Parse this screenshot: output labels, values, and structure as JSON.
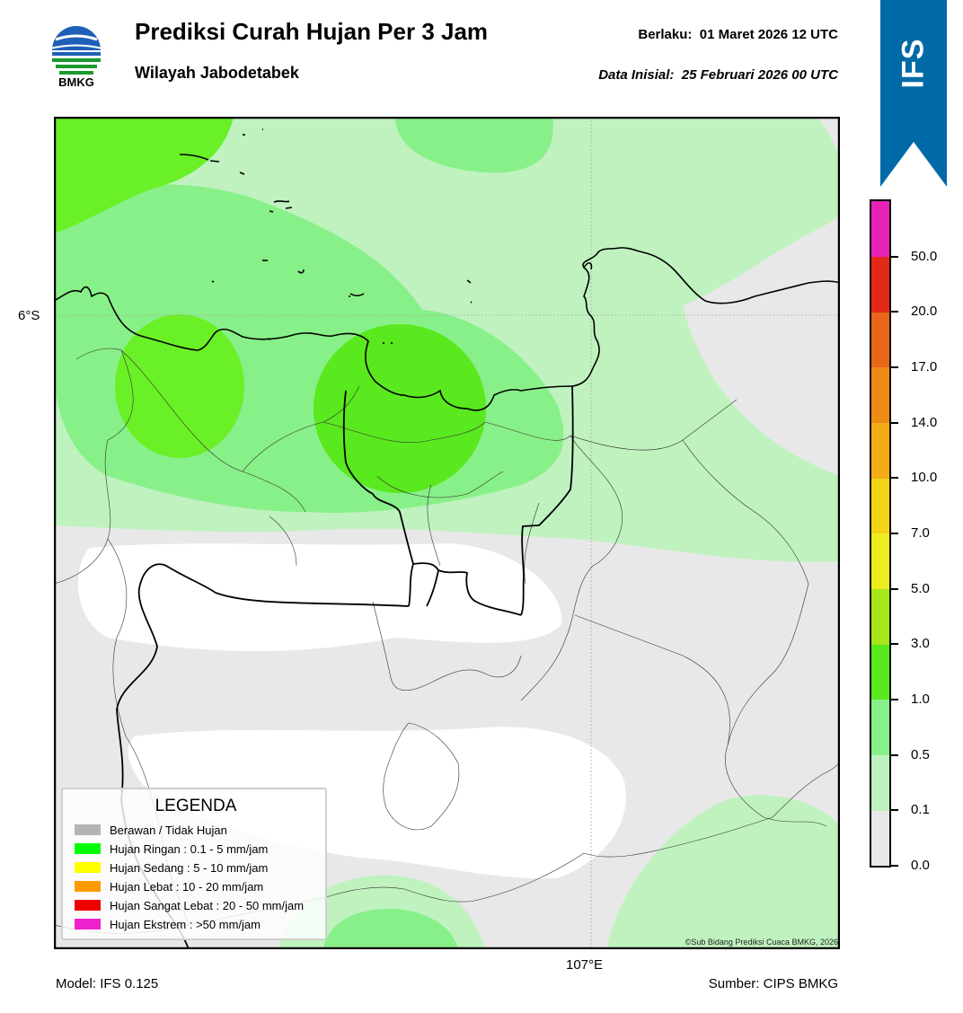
{
  "header": {
    "title": "Prediksi Curah Hujan Per 3 Jam",
    "subtitle": "Wilayah Jabodetabek",
    "valid_label": "Berlaku:",
    "valid_time": "01 Maret 2026 12 UTC",
    "init_label": "Data Inisial:",
    "init_time": "25 Februari 2026 00 UTC",
    "logo_text": "BMKG"
  },
  "ribbon": {
    "text": "IFS",
    "color": "#006aa6"
  },
  "axes": {
    "lat_label": "6°S",
    "lon_label": "107°E"
  },
  "footer": {
    "model": "Model: IFS 0.125",
    "source": "Sumber: CIPS BMKG",
    "copyright": "©Sub Bidang Prediksi Cuaca BMKG, 2026"
  },
  "legend": {
    "title": "LEGENDA",
    "items": [
      {
        "label": "Berawan / Tidak Hujan",
        "color": "#b4b4b4"
      },
      {
        "label": "Hujan Ringan : 0.1 - 5 mm/jam",
        "color": "#00ff00"
      },
      {
        "label": "Hujan Sedang : 5 - 10 mm/jam",
        "color": "#ffff00"
      },
      {
        "label": "Hujan Lebat : 10 - 20 mm/jam",
        "color": "#ff9900"
      },
      {
        "label": "Hujan Sangat Lebat : 20 - 50 mm/jam",
        "color": "#ee0000"
      },
      {
        "label": "Hujan Ekstrem : >50 mm/jam",
        "color": "#ee22cc"
      }
    ]
  },
  "colorbar": {
    "labels": [
      "0.0",
      "0.1",
      "0.5",
      "1.0",
      "3.0",
      "5.0",
      "7.0",
      "10.0",
      "14.0",
      "17.0",
      "20.0",
      "50.0"
    ],
    "colors": [
      "#e8e8e8",
      "#bff2bf",
      "#88f088",
      "#5ae81e",
      "#a6e61a",
      "#ecec1e",
      "#f2d316",
      "#f2ac16",
      "#ee8a16",
      "#e8661a",
      "#e42818",
      "#e822b8"
    ]
  },
  "map_colors": {
    "none": "#e8e8e8",
    "white": "#ffffff",
    "light": "#bff2bf",
    "mid": "#88f088",
    "bright": "#6af026",
    "brighter": "#5ae81e"
  }
}
